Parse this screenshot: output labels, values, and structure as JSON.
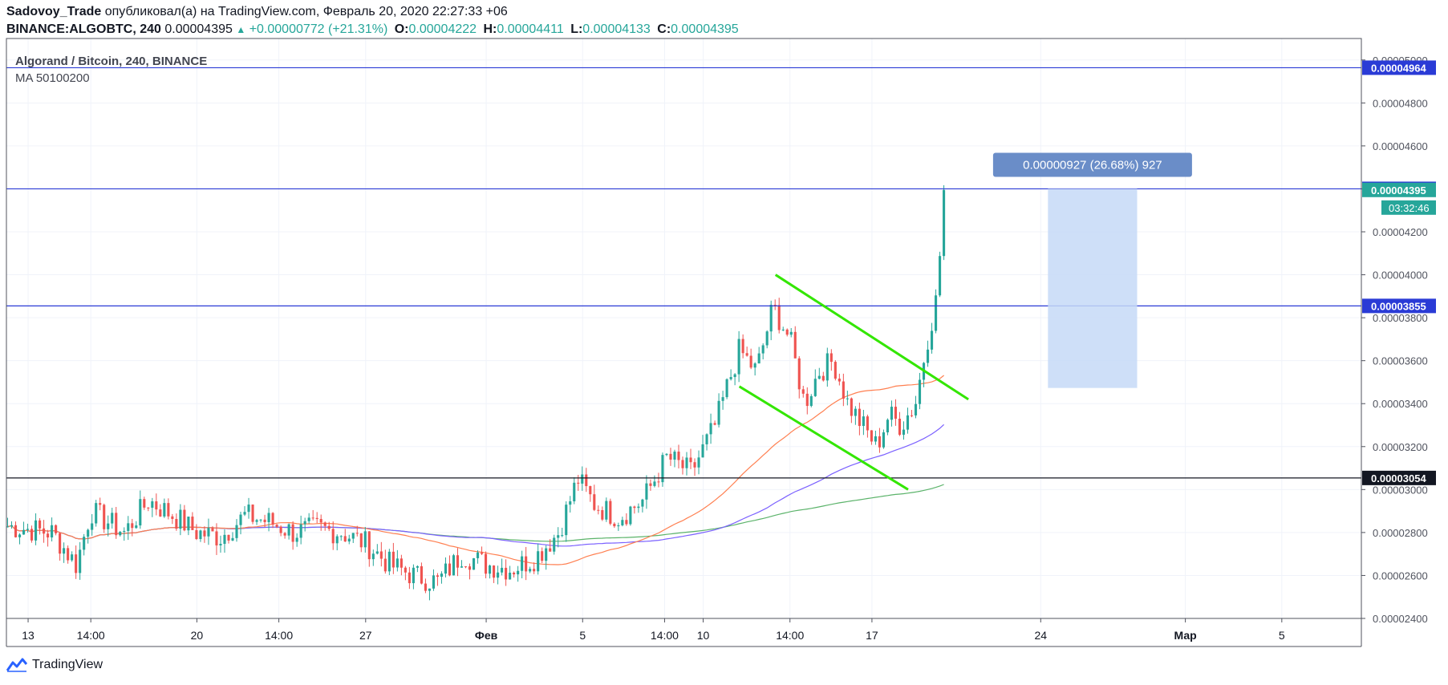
{
  "header": {
    "author": "Sadovoy_Trade",
    "published_text": "опубликовал(а) на TradingView.com, Февраль 20, 2020 22:27:33 +06",
    "symbol": "BINANCE:ALGOBTC, 240",
    "last": "0.00004395",
    "change": "+0.00000772 (+21.31%)",
    "o_label": "O:",
    "o": "0.00004222",
    "h_label": "H:",
    "h": "0.00004411",
    "l_label": "L:",
    "l": "0.00004133",
    "c_label": "C:",
    "c": "0.00004395"
  },
  "legend": {
    "title": "Algorand / Bitcoin, 240, BINANCE",
    "indicator": "MA 50100200"
  },
  "footer": {
    "brand": "TradingView"
  },
  "colors": {
    "up": "#26a69a",
    "down": "#ef5350",
    "ma50": "#ff7f50",
    "ma100": "#7b61ff",
    "ma200": "#5bb36a",
    "hline": "#2a3bd6",
    "support": "#131722",
    "channel": "#33e600",
    "range_box": "#c5d9f7",
    "range_label": "#6a8dc8",
    "last_price": "#26a69a"
  },
  "chart_data": {
    "type": "candlestick",
    "y_range": [
      2.4e-05,
      5.1e-05
    ],
    "y_ticks": [
      "0.00002400",
      "0.00002600",
      "0.00002800",
      "0.00003000",
      "0.00003200",
      "0.00003400",
      "0.00003600",
      "0.00003800",
      "0.00004000",
      "0.00004200",
      "0.00004400",
      "0.00004600",
      "0.00004800",
      "0.00005000"
    ],
    "x_ticks": [
      {
        "label": "13",
        "day": 13
      },
      {
        "label": "14:00",
        "day": 15.6
      },
      {
        "label": "20",
        "day": 20
      },
      {
        "label": "14:00",
        "day": 23.4
      },
      {
        "label": "27",
        "day": 27
      },
      {
        "label": "Фев",
        "day": 32
      },
      {
        "label": "5",
        "day": 36
      },
      {
        "label": "14:00",
        "day": 39.4
      },
      {
        "label": "10",
        "day": 41
      },
      {
        "label": "14:00",
        "day": 44.6
      },
      {
        "label": "17",
        "day": 48
      },
      {
        "label": "24",
        "day": 55
      },
      {
        "label": "Мар",
        "day": 61
      },
      {
        "label": "5",
        "day": 65
      }
    ],
    "x_range": [
      12.1,
      68.3
    ],
    "anchors": [
      [
        12.1,
        2.83e-05
      ],
      [
        14.0,
        2.8e-05
      ],
      [
        15.0,
        2.65e-05
      ],
      [
        15.6,
        2.9e-05
      ],
      [
        17.0,
        2.8e-05
      ],
      [
        18.0,
        2.95e-05
      ],
      [
        19.0,
        2.88e-05
      ],
      [
        20.0,
        2.8e-05
      ],
      [
        21.0,
        2.78e-05
      ],
      [
        22.0,
        2.88e-05
      ],
      [
        23.0,
        2.85e-05
      ],
      [
        24.0,
        2.8e-05
      ],
      [
        25.0,
        2.82e-05
      ],
      [
        26.0,
        2.8e-05
      ],
      [
        27.0,
        2.75e-05
      ],
      [
        28.0,
        2.65e-05
      ],
      [
        29.0,
        2.6e-05
      ],
      [
        30.0,
        2.57e-05
      ],
      [
        31.0,
        2.7e-05
      ],
      [
        32.0,
        2.65e-05
      ],
      [
        33.0,
        2.63e-05
      ],
      [
        34.0,
        2.68e-05
      ],
      [
        35.0,
        2.8e-05
      ],
      [
        35.8,
        3.05e-05
      ],
      [
        36.5,
        2.93e-05
      ],
      [
        37.5,
        2.87e-05
      ],
      [
        38.5,
        2.95e-05
      ],
      [
        39.5,
        3.15e-05
      ],
      [
        40.5,
        3.08e-05
      ],
      [
        41.5,
        3.3e-05
      ],
      [
        42.0,
        3.48e-05
      ],
      [
        42.5,
        3.65e-05
      ],
      [
        43.2,
        3.55e-05
      ],
      [
        43.9,
        3.85e-05
      ],
      [
        44.6,
        3.7e-05
      ],
      [
        45.2,
        3.4e-05
      ],
      [
        45.8,
        3.55e-05
      ],
      [
        46.4,
        3.6e-05
      ],
      [
        47.0,
        3.4e-05
      ],
      [
        47.6,
        3.3e-05
      ],
      [
        48.2,
        3.2e-05
      ],
      [
        48.7,
        3.35e-05
      ],
      [
        49.2,
        3.3e-05
      ],
      [
        49.8,
        3.4e-05
      ],
      [
        50.3,
        3.7e-05
      ],
      [
        50.7,
        3.9e-05
      ],
      [
        51.0,
        4.395e-05
      ]
    ],
    "hlines": [
      {
        "label": "0.00004964",
        "price": 4.964e-05
      },
      {
        "label": "0.00004400",
        "price": 4.4e-05
      },
      {
        "label": "0.00003855",
        "price": 3.855e-05
      },
      {
        "label": "0.00003054",
        "price": 3.054e-05
      }
    ],
    "last_price_label": "0.00004395",
    "countdown": "03:32:46",
    "channel_lines": [
      {
        "from": [
          44.0,
          4e-05
        ],
        "to": [
          52.0,
          3.42e-05
        ]
      },
      {
        "from": [
          42.5,
          3.48e-05
        ],
        "to": [
          49.5,
          3e-05
        ]
      }
    ],
    "range_tool": {
      "x1": 55.3,
      "x2": 59.0,
      "top": 4.4e-05,
      "bottom": 3.473e-05,
      "label": "0.00000927 (26.68%) 927"
    }
  }
}
